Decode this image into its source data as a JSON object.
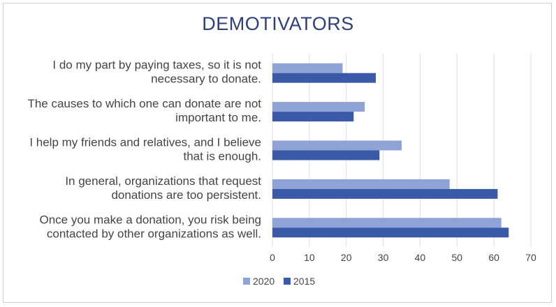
{
  "chart_data": {
    "type": "bar",
    "orientation": "horizontal",
    "title": "DEMOTIVATORS",
    "categories": [
      [
        "I do my part by paying taxes, so it is not",
        "necessary to donate."
      ],
      [
        "The causes to which one can donate are not",
        "important to me."
      ],
      [
        "I help my friends and relatives, and I believe",
        "that is enough."
      ],
      [
        "In general, organizations that request",
        "donations are too persistent."
      ],
      [
        "Once you make a donation, you risk being",
        "contacted by other organizations as well."
      ]
    ],
    "series": [
      {
        "name": "2020",
        "color": "#8fa3d6",
        "values": [
          19,
          25,
          35,
          48,
          62
        ]
      },
      {
        "name": "2015",
        "color": "#3a5aa8",
        "values": [
          28,
          22,
          29,
          61,
          64
        ]
      }
    ],
    "xlim": [
      0,
      70
    ],
    "xticks": [
      0,
      10,
      20,
      30,
      40,
      50,
      60,
      70
    ],
    "grid": true,
    "legend": "bottom"
  }
}
